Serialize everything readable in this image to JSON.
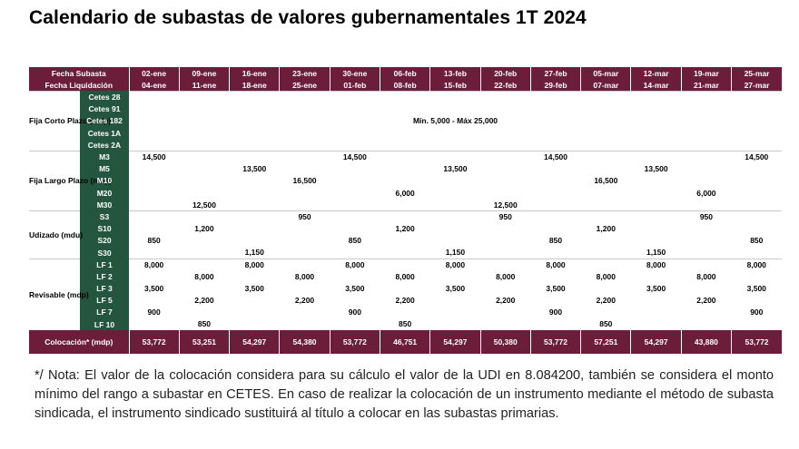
{
  "title": "Calendario de subastas de valores gubernamentales 1T 2024",
  "header": {
    "fecha_subasta_label": "Fecha Subasta",
    "fecha_liquidacion_label": "Fecha Liquidación",
    "subasta": [
      "02-ene",
      "09-ene",
      "16-ene",
      "23-ene",
      "30-ene",
      "06-feb",
      "13-feb",
      "20-feb",
      "27-feb",
      "05-mar",
      "12-mar",
      "19-mar",
      "25-mar"
    ],
    "liquidacion": [
      "04-ene",
      "11-ene",
      "18-ene",
      "25-ene",
      "01-feb",
      "08-feb",
      "15-feb",
      "22-feb",
      "29-feb",
      "07-mar",
      "14-mar",
      "21-mar",
      "27-mar"
    ]
  },
  "groups": [
    {
      "label": "Fija Corto Plazo (mdp)",
      "range_text": "Mín. 5,000 - Máx 25,000",
      "rows": [
        {
          "inst": "Cetes 28"
        },
        {
          "inst": "Cetes 91"
        },
        {
          "inst": "Cetes 182"
        },
        {
          "inst": "Cetes 1A"
        },
        {
          "inst": "Cetes 2A"
        }
      ]
    },
    {
      "label": "Fija Largo Plazo (mdp)",
      "rows": [
        {
          "inst": "M3",
          "values": [
            "14,500",
            "",
            "",
            "",
            "14,500",
            "",
            "",
            "",
            "14,500",
            "",
            "",
            "",
            "14,500"
          ]
        },
        {
          "inst": "M5",
          "values": [
            "",
            "",
            "13,500",
            "",
            "",
            "",
            "13,500",
            "",
            "",
            "",
            "13,500",
            "",
            ""
          ]
        },
        {
          "inst": "M10",
          "values": [
            "",
            "",
            "",
            "16,500",
            "",
            "",
            "",
            "",
            "",
            "16,500",
            "",
            "",
            ""
          ]
        },
        {
          "inst": "M20",
          "values": [
            "",
            "",
            "",
            "",
            "",
            "6,000",
            "",
            "",
            "",
            "",
            "",
            "6,000",
            ""
          ]
        },
        {
          "inst": "M30",
          "values": [
            "",
            "12,500",
            "",
            "",
            "",
            "",
            "",
            "12,500",
            "",
            "",
            "",
            "",
            ""
          ]
        }
      ]
    },
    {
      "label": "Udizado (mdu)",
      "rows": [
        {
          "inst": "S3",
          "values": [
            "",
            "",
            "",
            "950",
            "",
            "",
            "",
            "950",
            "",
            "",
            "",
            "950",
            ""
          ]
        },
        {
          "inst": "S10",
          "values": [
            "",
            "1,200",
            "",
            "",
            "",
            "1,200",
            "",
            "",
            "",
            "1,200",
            "",
            "",
            ""
          ]
        },
        {
          "inst": "S20",
          "values": [
            "850",
            "",
            "",
            "",
            "850",
            "",
            "",
            "",
            "850",
            "",
            "",
            "",
            "850"
          ]
        },
        {
          "inst": "S30",
          "values": [
            "",
            "",
            "1,150",
            "",
            "",
            "",
            "1,150",
            "",
            "",
            "",
            "1,150",
            "",
            ""
          ]
        }
      ]
    },
    {
      "label": "Revisable (mdp)",
      "rows": [
        {
          "inst": "LF 1",
          "values": [
            "8,000",
            "",
            "8,000",
            "",
            "8,000",
            "",
            "8,000",
            "",
            "8,000",
            "",
            "8,000",
            "",
            "8,000"
          ]
        },
        {
          "inst": "LF 2",
          "values": [
            "",
            "8,000",
            "",
            "8,000",
            "",
            "8,000",
            "",
            "8,000",
            "",
            "8,000",
            "",
            "8,000",
            ""
          ]
        },
        {
          "inst": "LF 3",
          "values": [
            "3,500",
            "",
            "3,500",
            "",
            "3,500",
            "",
            "3,500",
            "",
            "3,500",
            "",
            "3,500",
            "",
            "3,500"
          ]
        },
        {
          "inst": "LF 5",
          "values": [
            "",
            "2,200",
            "",
            "2,200",
            "",
            "2,200",
            "",
            "2,200",
            "",
            "2,200",
            "",
            "2,200",
            ""
          ]
        },
        {
          "inst": "LF 7",
          "values": [
            "900",
            "",
            "",
            "",
            "900",
            "",
            "",
            "",
            "900",
            "",
            "",
            "",
            "900"
          ]
        },
        {
          "inst": "LF 10",
          "values": [
            "",
            "850",
            "",
            "",
            "",
            "850",
            "",
            "",
            "",
            "850",
            "",
            "",
            ""
          ]
        }
      ]
    }
  ],
  "total": {
    "label": "Colocación* (mdp)",
    "values": [
      "53,772",
      "53,251",
      "54,297",
      "54,380",
      "53,772",
      "46,751",
      "54,297",
      "50,380",
      "53,772",
      "57,251",
      "54,297",
      "43,880",
      "53,772"
    ]
  },
  "note": "*/ Nota: El valor de la colocación considera para su cálculo el valor de la UDI en 8.084200, también se considera el monto mínimo del rango a subastar en CETES. En caso de realizar la colocación de un instrumento mediante el método de subasta sindicada, el instrumento sindicado sustituirá al título a colocar en las subastas primarias."
}
